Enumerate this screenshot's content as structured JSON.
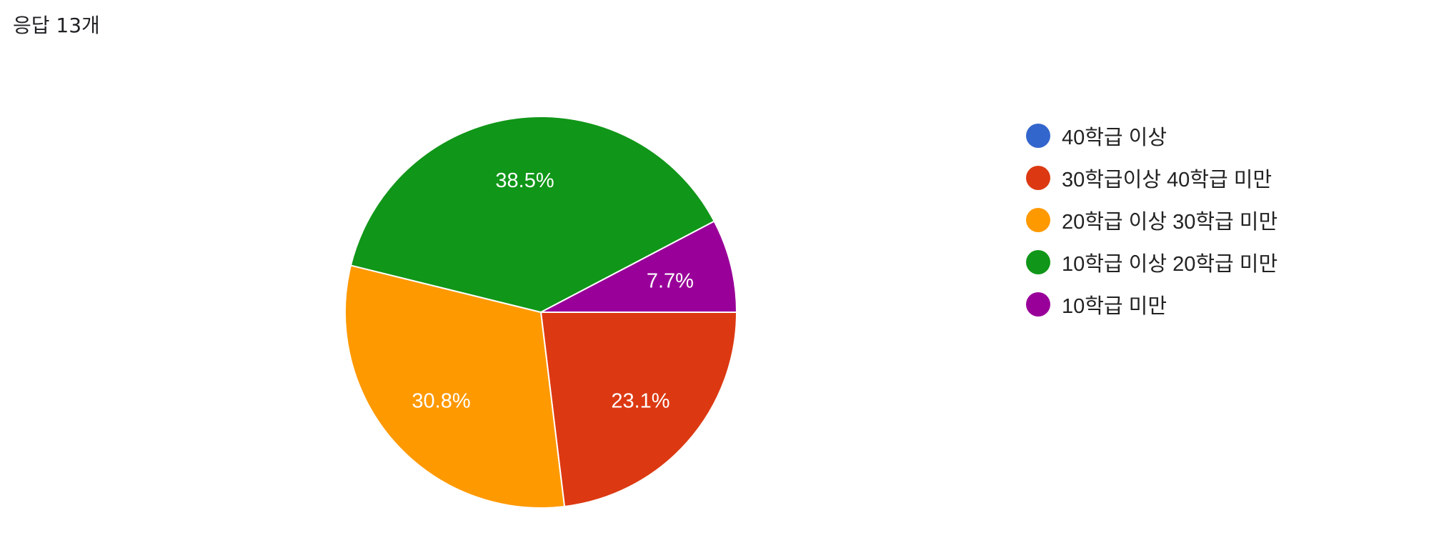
{
  "header": {
    "title": "응답 13개"
  },
  "chart_data": {
    "type": "pie",
    "categories": [
      "40학급 이상",
      "30학급이상 40학급 미만",
      "20학급 이상 30학급 미만",
      "10학급 이상 20학급 미만",
      "10학급 미만"
    ],
    "values": [
      0,
      23.1,
      30.8,
      38.5,
      7.7
    ],
    "data_labels": [
      "",
      "23.1%",
      "30.8%",
      "38.5%",
      "7.7%"
    ],
    "colors": [
      "#3366cc",
      "#dc3912",
      "#ff9900",
      "#109618",
      "#990099"
    ],
    "legend_position": "right"
  }
}
